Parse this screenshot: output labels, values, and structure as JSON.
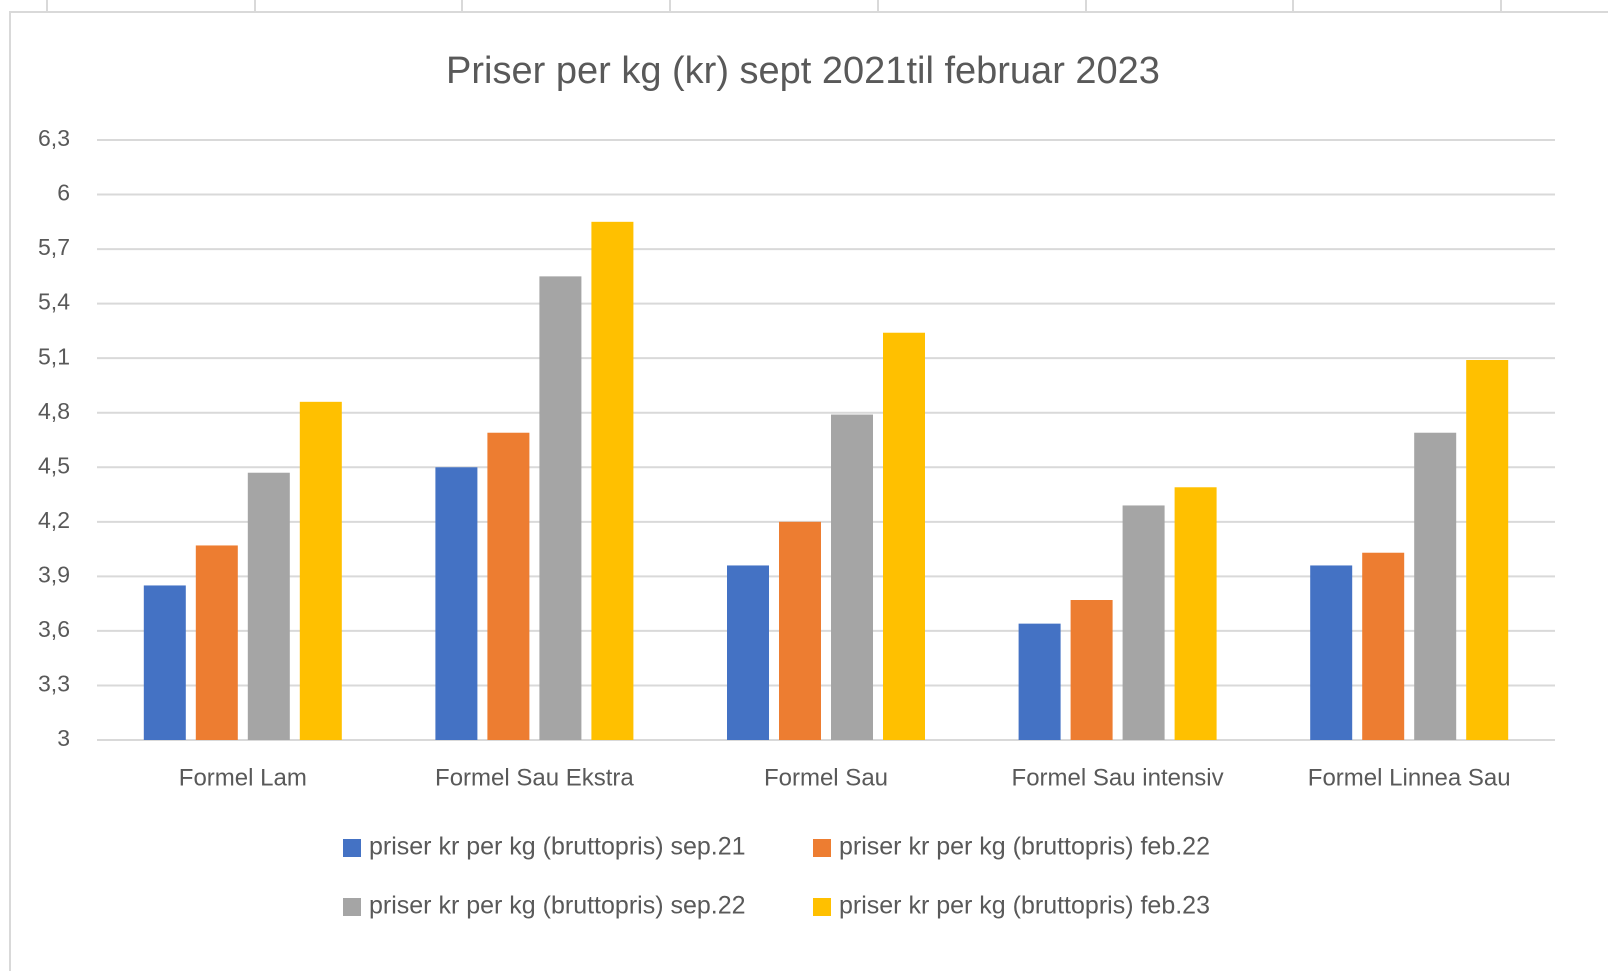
{
  "chart_data": {
    "type": "bar",
    "title": "Priser per kg (kr) sept 2021til februar 2023",
    "categories": [
      "Formel Lam",
      "Formel Sau Ekstra",
      "Formel Sau",
      "Formel Sau intensiv",
      "Formel Linnea Sau"
    ],
    "series": [
      {
        "name": "priser kr per kg (bruttopris) sep.21",
        "color": "#4472c4",
        "values": [
          3.85,
          4.5,
          3.96,
          3.64,
          3.96
        ]
      },
      {
        "name": "priser kr per kg (bruttopris) feb.22",
        "color": "#ed7d31",
        "values": [
          4.07,
          4.69,
          4.2,
          3.77,
          4.03
        ]
      },
      {
        "name": "priser kr per kg (bruttopris) sep.22",
        "color": "#a5a5a5",
        "values": [
          4.47,
          5.55,
          4.79,
          4.29,
          4.69
        ]
      },
      {
        "name": "priser kr per kg (bruttopris) feb.23",
        "color": "#ffc000",
        "values": [
          4.86,
          5.85,
          5.24,
          4.39,
          5.09
        ]
      }
    ],
    "ylim": [
      3,
      6.3
    ],
    "yticks": [
      3,
      {
        "value": 3.3,
        "label": "3,3"
      },
      {
        "value": 3.6,
        "label": "3,6"
      },
      {
        "value": 3.9,
        "label": "3,9"
      },
      {
        "value": 4.2,
        "label": "4,2"
      },
      {
        "value": 4.5,
        "label": "4,5"
      },
      {
        "value": 4.8,
        "label": "4,8"
      },
      {
        "value": 5.1,
        "label": "5,1"
      },
      {
        "value": 5.4,
        "label": "5,4"
      },
      {
        "value": 5.7,
        "label": "5,7"
      },
      6,
      {
        "value": 6.3,
        "label": "6,3"
      }
    ],
    "grid": true,
    "legend": "bottom"
  }
}
